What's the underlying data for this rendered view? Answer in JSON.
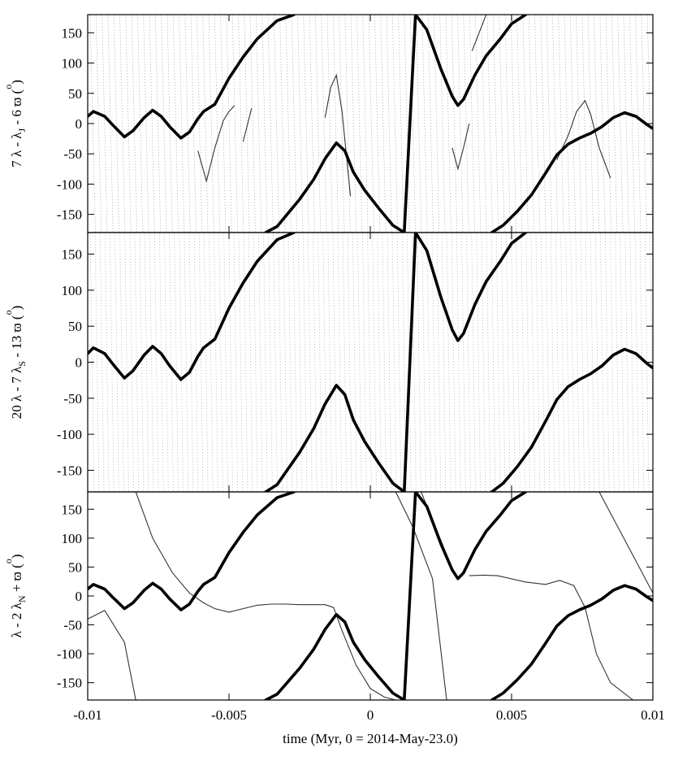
{
  "chart_data": {
    "type": "scatter",
    "shared_x": {
      "label": "time (Myr, 0 = 2014-May-23.0)",
      "range": [
        -0.01,
        0.01
      ],
      "ticks": [
        -0.01,
        -0.005,
        0,
        0.005,
        0.01
      ],
      "tick_labels": [
        "-0.01",
        "-0.005",
        "0",
        "0.005",
        "0.01"
      ]
    },
    "panels": [
      {
        "ylabel": "7 λ - λ_J - 6 ϖ (°)",
        "ylabel_main": "7 λ - λ",
        "ylabel_sub": "J",
        "ylabel_tail": " - 6 ϖ (",
        "ylabel_deg": "o",
        "ylabel_close": ")",
        "ylim": [
          -180,
          180
        ],
        "yticks": [
          -150,
          -100,
          -50,
          0,
          50,
          100,
          150
        ],
        "background": "rapidly circulating angle (dense dotted lines)"
      },
      {
        "ylabel": "20 λ - 7 λ_S - 13 ϖ (°)",
        "ylabel_main": "20 λ - 7 λ",
        "ylabel_sub": "S",
        "ylabel_tail": " - 13 ϖ (",
        "ylabel_deg": "o",
        "ylabel_close": ")",
        "ylim": [
          -180,
          180
        ],
        "yticks": [
          -150,
          -100,
          -50,
          0,
          50,
          100,
          150
        ],
        "background": "rapidly circulating angle (dense dotted lines)"
      },
      {
        "ylabel": "λ - 2 λ_N + ϖ (°)",
        "ylabel_main": "λ - 2 λ",
        "ylabel_sub": "N",
        "ylabel_tail": " + ϖ (",
        "ylabel_deg": "o",
        "ylabel_close": ")",
        "ylim": [
          -180,
          180
        ],
        "yticks": [
          -150,
          -100,
          -50,
          0,
          50,
          100,
          150
        ],
        "background": "slowly circulating / librating angle (thin line)",
        "thin_series": [
          {
            "x": [
              -0.01,
              -0.0094,
              -0.0087
            ],
            "y": [
              -40,
              -25,
              -80
            ]
          },
          {
            "x": [
              -0.0087,
              -0.0083
            ],
            "y": [
              -80,
              -180
            ]
          },
          {
            "x": [
              -0.0083,
              -0.0077,
              -0.007,
              -0.0064,
              -0.0059,
              -0.0055,
              -0.005,
              -0.0045,
              -0.004,
              -0.0035,
              -0.003,
              -0.0025,
              -0.002,
              -0.0016,
              -0.0013,
              -0.001,
              -0.0005,
              0.0,
              0.0005,
              0.0009
            ],
            "y": [
              180,
              100,
              40,
              5,
              -12,
              -22,
              -28,
              -22,
              -16,
              -14,
              -14,
              -15,
              -15,
              -15,
              -20,
              -60,
              -120,
              -160,
              -175,
              -180
            ]
          },
          {
            "x": [
              0.0009,
              0.0015,
              0.0022
            ],
            "y": [
              180,
              120,
              30
            ]
          },
          {
            "x": [
              0.0022,
              0.0027
            ],
            "y": [
              30,
              -180
            ]
          },
          {
            "x": [
              0.0035,
              0.004,
              0.0045,
              0.0055,
              0.0062,
              0.0067,
              0.0072,
              0.0076,
              0.008,
              0.0085,
              0.0093,
              0.01
            ],
            "y": [
              35,
              36,
              35,
              24,
              20,
              27,
              18,
              -20,
              -100,
              -150,
              -180,
              -180
            ]
          },
          {
            "x": [
              0.0018,
              0.003
            ],
            "y": [
              180,
              35
            ]
          },
          {
            "x": [
              0.0081,
              0.01
            ],
            "y": [
              180,
              5
            ]
          }
        ]
      }
    ],
    "series": [
      {
        "name": "",
        "style": "thick black curve (same in all three panels)",
        "segments": [
          {
            "x": [
              -0.01,
              -0.0098,
              -0.0094,
              -0.0091,
              -0.0087,
              -0.0084,
              -0.008,
              -0.0077,
              -0.0074,
              -0.0071,
              -0.0067,
              -0.0064,
              -0.0061,
              -0.0059,
              -0.0055,
              -0.005,
              -0.0045,
              -0.004,
              -0.0033,
              -0.0027
            ],
            "y": [
              12,
              20,
              12,
              -3,
              -22,
              -12,
              10,
              22,
              12,
              -5,
              -24,
              -14,
              8,
              20,
              32,
              75,
              110,
              140,
              170,
              180
            ]
          },
          {
            "x": [
              -0.0037,
              -0.0033,
              -0.0025,
              -0.002,
              -0.0016,
              -0.0012,
              -0.0009,
              -0.0006,
              -0.0002,
              0.0003,
              0.0008,
              0.0012,
              0.0016,
              0.002,
              0.0025,
              0.0029,
              0.0031,
              0.0033,
              0.0037,
              0.0041,
              0.0046,
              0.005,
              0.0055
            ],
            "y": [
              -180,
              -170,
              -125,
              -92,
              -58,
              -32,
              -45,
              -80,
              -110,
              -140,
              -168,
              -180,
              180,
              155,
              90,
              45,
              30,
              40,
              80,
              112,
              140,
              165,
              180
            ]
          },
          {
            "x": [
              0.0043,
              0.0047,
              0.0052,
              0.0057,
              0.0062,
              0.0066,
              0.007,
              0.0074,
              0.0078,
              0.0082,
              0.0086,
              0.009,
              0.0094,
              0.0098,
              0.01
            ],
            "y": [
              -180,
              -168,
              -145,
              -118,
              -82,
              -52,
              -34,
              -24,
              -16,
              -5,
              10,
              18,
              12,
              -2,
              -8
            ]
          }
        ]
      }
    ],
    "panel_top": {
      "thin_series": [
        {
          "x": [
            -0.0061,
            -0.0058,
            -0.0055,
            -0.0052,
            -0.005,
            -0.0048
          ],
          "y": [
            -45,
            -95,
            -40,
            5,
            20,
            30
          ]
        },
        {
          "x": [
            -0.0016,
            -0.0014,
            -0.0012,
            -0.001,
            -0.0007
          ],
          "y": [
            10,
            60,
            80,
            20,
            -120
          ]
        },
        {
          "x": [
            0.0029,
            0.0031,
            0.0033,
            0.0035
          ],
          "y": [
            -40,
            -75,
            -40,
            0
          ]
        },
        {
          "x": [
            0.0066,
            0.007,
            0.0073,
            0.0076,
            0.0078,
            0.0081,
            0.0085
          ],
          "y": [
            -60,
            -20,
            20,
            38,
            15,
            -40,
            -90
          ]
        },
        {
          "x": [
            0.0036,
            0.0041
          ],
          "y": [
            120,
            180
          ]
        },
        {
          "x": [
            -0.0045,
            -0.0042
          ],
          "y": [
            -30,
            25
          ]
        }
      ]
    }
  }
}
